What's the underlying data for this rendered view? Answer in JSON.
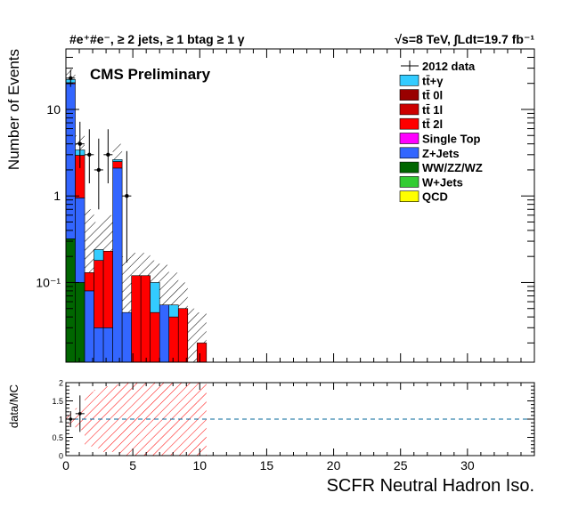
{
  "header": {
    "selection": "#e⁺#e⁻, ≥ 2 jets, ≥ 1 btag ≥ 1 γ",
    "lumi": "√s=8 TeV,  ∫Ldt=19.7 fb⁻¹",
    "experiment": "CMS Preliminary"
  },
  "colors": {
    "data": "#000000",
    "ttgamma": "#33ccff",
    "tt0l": "#990000",
    "tt1l": "#cc0000",
    "tt2l": "#ff0000",
    "single_top": "#ff00ff",
    "zjets": "#3366ff",
    "vv": "#006600",
    "wjets": "#33cc33",
    "qcd": "#ffff00",
    "ratio_line": "#006699"
  },
  "chart_data": [
    {
      "type": "bar",
      "stacked": true,
      "log_y": true,
      "xlabel": "SCFR Neutral Hadron Iso.",
      "ylabel": "Number of Events",
      "xlim": [
        0,
        35
      ],
      "ylim": [
        0.012,
        50
      ],
      "x_ticks": [
        "0",
        "5",
        "10",
        "15",
        "20",
        "25",
        "30"
      ],
      "y_ticks": [
        {
          "value": 0.1,
          "label": "10⁻¹"
        },
        {
          "value": 1,
          "label": "1"
        },
        {
          "value": 10,
          "label": "10"
        }
      ],
      "bin_edges": [
        0,
        0.7,
        1.4,
        2.1,
        2.8,
        3.5,
        4.2,
        4.9,
        5.6,
        6.3,
        7.0,
        7.7,
        8.4,
        9.1,
        9.8,
        10.5
      ],
      "legend": {
        "position": "top-right",
        "entries": [
          "2012 data",
          "tt̄+γ",
          "tt̄ 0l",
          "tt̄ 1l",
          "tt̄ 2l",
          "Single Top",
          "Z+Jets",
          "WW/ZZ/WZ",
          "W+Jets",
          "QCD"
        ]
      },
      "series": [
        {
          "name": "WW/ZZ/WZ",
          "color_key": "vv",
          "values": [
            0.32,
            0.1,
            0,
            0,
            0,
            0,
            0,
            0,
            0,
            0,
            0,
            0,
            0,
            0,
            0
          ]
        },
        {
          "name": "Z+Jets",
          "color_key": "zjets",
          "values": [
            19.5,
            0.85,
            0.08,
            0.03,
            0.03,
            2.1,
            0.045,
            0,
            0,
            0,
            0.055,
            0,
            0,
            0,
            0
          ]
        },
        {
          "name": "tt̄ 2l",
          "color_key": "tt2l",
          "values": [
            0.55,
            2.0,
            0.05,
            0.15,
            0.2,
            0.4,
            0,
            0.12,
            0.12,
            0.045,
            0,
            0.04,
            0.05,
            0,
            0.02
          ]
        },
        {
          "name": "tt̄+γ",
          "color_key": "ttgamma",
          "values": [
            1.8,
            0.45,
            0,
            0.06,
            0,
            0.13,
            0,
            0,
            0,
            0.055,
            0,
            0.015,
            0,
            0,
            0
          ]
        }
      ],
      "data_points": [
        {
          "x": 0.35,
          "y": 23,
          "err_lo": 4.8,
          "err_hi": 5.8
        },
        {
          "x": 1.05,
          "y": 4,
          "err_lo": 1.9,
          "err_hi": 3.2
        },
        {
          "x": 1.75,
          "y": 3,
          "err_lo": 1.6,
          "err_hi": 2.9
        },
        {
          "x": 2.45,
          "y": 2,
          "err_lo": 1.3,
          "err_hi": 2.6
        },
        {
          "x": 3.15,
          "y": 3,
          "err_lo": 1.6,
          "err_hi": 2.9
        },
        {
          "x": 4.55,
          "y": 1,
          "err_lo": 0.83,
          "err_hi": 2.3
        }
      ],
      "mc_total_band": [
        {
          "lo": 17,
          "hi": 29
        },
        {
          "lo": 1.8,
          "hi": 5.0
        },
        {
          "lo": 0.06,
          "hi": 0.7
        },
        {
          "lo": 0.15,
          "hi": 0.5
        },
        {
          "lo": 0.06,
          "hi": 0.6
        },
        {
          "lo": 1.5,
          "hi": 4.0
        },
        {
          "lo": 0.02,
          "hi": 0.2
        },
        {
          "lo": 0.05,
          "hi": 0.22
        },
        {
          "lo": 0.05,
          "hi": 0.22
        },
        {
          "lo": 0.03,
          "hi": 0.18
        },
        {
          "lo": 0.02,
          "hi": 0.16
        },
        {
          "lo": 0.02,
          "hi": 0.13
        },
        {
          "lo": 0.02,
          "hi": 0.1
        },
        {
          "lo": 0.012,
          "hi": 0.05
        },
        {
          "lo": 0.012,
          "hi": 0.045
        }
      ]
    },
    {
      "type": "line",
      "xlabel": "SCFR Neutral Hadron Iso.",
      "ylabel": "data/MC",
      "xlim": [
        0,
        35
      ],
      "ylim": [
        0,
        2
      ],
      "x_ticks": [
        "0",
        "5",
        "10",
        "15",
        "20",
        "25",
        "30"
      ],
      "y_ticks": [
        "0",
        "0.5",
        "1",
        "1.5",
        "2"
      ],
      "reference_line": 1,
      "points": [
        {
          "x": 0.35,
          "y": 1.0,
          "err": 0.22
        },
        {
          "x": 1.05,
          "y": 1.15,
          "err": 0.5
        }
      ],
      "uncertainty_band": [
        {
          "lo": 0.85,
          "hi": 1.15
        },
        {
          "lo": 0.7,
          "hi": 1.3
        },
        {
          "lo": 0.25,
          "hi": 1.75
        },
        {
          "lo": 0.2,
          "hi": 1.8
        },
        {
          "lo": 0.1,
          "hi": 1.9
        },
        {
          "lo": 0.05,
          "hi": 1.95
        },
        {
          "lo": 0,
          "hi": 2
        },
        {
          "lo": 0,
          "hi": 2
        },
        {
          "lo": 0,
          "hi": 2
        },
        {
          "lo": 0,
          "hi": 2
        },
        {
          "lo": 0,
          "hi": 2
        },
        {
          "lo": 0,
          "hi": 2
        },
        {
          "lo": 0,
          "hi": 2
        },
        {
          "lo": 0,
          "hi": 2
        },
        {
          "lo": 0,
          "hi": 2
        }
      ]
    }
  ]
}
